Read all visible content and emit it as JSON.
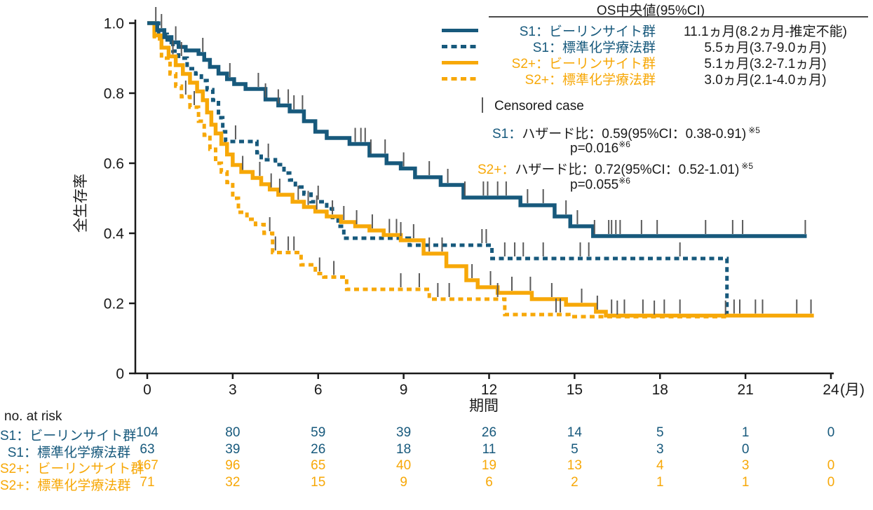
{
  "colors": {
    "s1": "#17597C",
    "s2": "#F7A808",
    "text": "#1a1a1a",
    "censor": "#5a5a5a",
    "axis": "#1a1a1a"
  },
  "chart_data": {
    "type": "line",
    "kind": "kaplan-meier-step",
    "xlabel": "期間",
    "ylabel": "全生存率",
    "xlim": [
      0,
      24
    ],
    "ylim": [
      0,
      1.0
    ],
    "grid": false,
    "legend_position": "top-right",
    "x_ticks": [
      {
        "v": 0,
        "label": "0"
      },
      {
        "v": 3,
        "label": "3"
      },
      {
        "v": 6,
        "label": "6"
      },
      {
        "v": 9,
        "label": "9"
      },
      {
        "v": 12,
        "label": "12"
      },
      {
        "v": 15,
        "label": "15"
      },
      {
        "v": 18,
        "label": "18"
      },
      {
        "v": 21,
        "label": "21"
      },
      {
        "v": 24,
        "label": "24",
        "suffix": "(月)"
      }
    ],
    "y_ticks": [
      {
        "v": 1.0,
        "label": "1.0"
      },
      {
        "v": 0.8,
        "label": "0.8"
      },
      {
        "v": 0.6,
        "label": "0.6"
      },
      {
        "v": 0.4,
        "label": "0.4"
      },
      {
        "v": 0.2,
        "label": "0.2"
      },
      {
        "v": 0,
        "label": "0"
      }
    ],
    "series": [
      {
        "id": "s1-chemo",
        "name": "S1：標準化学療法群",
        "color": "#17597C",
        "dash": "dashed",
        "median": "5.5ヵ月(3.7-9.0ヵ月)",
        "steps": [
          [
            0,
            1.0
          ],
          [
            0.4,
            0.968
          ],
          [
            0.7,
            0.952
          ],
          [
            0.9,
            0.92
          ],
          [
            1.1,
            0.9
          ],
          [
            1.4,
            0.87
          ],
          [
            1.7,
            0.855
          ],
          [
            1.9,
            0.836
          ],
          [
            2.1,
            0.81
          ],
          [
            2.3,
            0.78
          ],
          [
            2.5,
            0.73
          ],
          [
            2.65,
            0.69
          ],
          [
            2.75,
            0.662
          ],
          [
            3.85,
            0.63
          ],
          [
            4.0,
            0.61
          ],
          [
            4.5,
            0.596
          ],
          [
            4.8,
            0.572
          ],
          [
            5.0,
            0.552
          ],
          [
            5.2,
            0.532
          ],
          [
            5.5,
            0.512
          ],
          [
            5.75,
            0.49
          ],
          [
            6.3,
            0.47
          ],
          [
            6.5,
            0.445
          ],
          [
            6.7,
            0.42
          ],
          [
            6.9,
            0.386
          ],
          [
            9.2,
            0.366
          ],
          [
            12.1,
            0.328
          ],
          [
            20.35,
            0.165
          ]
        ],
        "end": 20.8,
        "censors": [
          1.2,
          3.1,
          4.25,
          6.0,
          8.9,
          11.75,
          11.9,
          12.55,
          12.9,
          13.2,
          13.9,
          15.2,
          15.5,
          18.7,
          20.6
        ]
      },
      {
        "id": "s2-chemo",
        "name": "S2+：標準化学療法群",
        "color": "#F7A808",
        "dash": "dashed",
        "median": "3.0ヵ月(2.1-4.0ヵ月)",
        "steps": [
          [
            0,
            1.0
          ],
          [
            0.25,
            0.955
          ],
          [
            0.5,
            0.9
          ],
          [
            0.8,
            0.855
          ],
          [
            1.0,
            0.82
          ],
          [
            1.2,
            0.79
          ],
          [
            1.5,
            0.76
          ],
          [
            1.8,
            0.72
          ],
          [
            2.0,
            0.68
          ],
          [
            2.2,
            0.64
          ],
          [
            2.4,
            0.6
          ],
          [
            2.6,
            0.575
          ],
          [
            2.8,
            0.545
          ],
          [
            3.0,
            0.5
          ],
          [
            3.2,
            0.46
          ],
          [
            3.5,
            0.44
          ],
          [
            3.8,
            0.425
          ],
          [
            4.1,
            0.4
          ],
          [
            4.4,
            0.345
          ],
          [
            5.4,
            0.31
          ],
          [
            5.9,
            0.285
          ],
          [
            6.2,
            0.275
          ],
          [
            7.0,
            0.24
          ],
          [
            9.9,
            0.212
          ],
          [
            12.55,
            0.168
          ],
          [
            14.8,
            0.162
          ]
        ],
        "end": 20.4,
        "censors": [
          1.35,
          1.65,
          4.3,
          4.5,
          4.95,
          5.15,
          6.05,
          6.55,
          8.9,
          9.55,
          10.2,
          10.6,
          12.3,
          14.35,
          14.5,
          16.5,
          17.8,
          20.3
        ]
      },
      {
        "id": "s2-blincyto",
        "name": "S2+：ビーリンサイト群",
        "color": "#F7A808",
        "dash": "solid",
        "median": "5.1ヵ月(3.2-7.1ヵ月)",
        "steps": [
          [
            0,
            1.0
          ],
          [
            0.25,
            0.965
          ],
          [
            0.5,
            0.93
          ],
          [
            0.75,
            0.905
          ],
          [
            1.0,
            0.88
          ],
          [
            1.25,
            0.855
          ],
          [
            1.5,
            0.83
          ],
          [
            1.75,
            0.805
          ],
          [
            1.95,
            0.78
          ],
          [
            2.1,
            0.745
          ],
          [
            2.25,
            0.71
          ],
          [
            2.4,
            0.685
          ],
          [
            2.6,
            0.655
          ],
          [
            2.8,
            0.625
          ],
          [
            3.0,
            0.595
          ],
          [
            3.3,
            0.575
          ],
          [
            3.7,
            0.558
          ],
          [
            4.0,
            0.54
          ],
          [
            4.3,
            0.525
          ],
          [
            4.6,
            0.51
          ],
          [
            5.1,
            0.49
          ],
          [
            5.5,
            0.475
          ],
          [
            5.9,
            0.462
          ],
          [
            6.3,
            0.448
          ],
          [
            6.8,
            0.432
          ],
          [
            7.3,
            0.42
          ],
          [
            7.8,
            0.408
          ],
          [
            8.3,
            0.395
          ],
          [
            8.9,
            0.38
          ],
          [
            9.7,
            0.342
          ],
          [
            10.5,
            0.306
          ],
          [
            11.2,
            0.266
          ],
          [
            11.6,
            0.246
          ],
          [
            12.3,
            0.23
          ],
          [
            13.5,
            0.212
          ],
          [
            14.7,
            0.196
          ],
          [
            15.75,
            0.176
          ],
          [
            16.1,
            0.165
          ]
        ],
        "end": 23.4,
        "censors": [
          0.9,
          3.35,
          3.95,
          4.35,
          4.65,
          5.3,
          5.65,
          5.95,
          6.5,
          6.9,
          7.35,
          7.9,
          8.5,
          8.75,
          9.35,
          9.9,
          10.35,
          11.4,
          12.05,
          12.8,
          13.45,
          14.2,
          15.25,
          15.8,
          16.3,
          16.75,
          17.4,
          18.15,
          18.7,
          20.8,
          21.35,
          21.6,
          22.8,
          23.3
        ]
      },
      {
        "id": "s1-blincyto",
        "name": "S1：ビーリンサイト群",
        "color": "#17597C",
        "dash": "solid",
        "median": "11.1ヵ月(8.2ヵ月-推定不能)",
        "steps": [
          [
            0,
            1.0
          ],
          [
            0.35,
            0.98
          ],
          [
            0.6,
            0.96
          ],
          [
            0.85,
            0.945
          ],
          [
            1.1,
            0.932
          ],
          [
            1.35,
            0.922
          ],
          [
            1.8,
            0.912
          ],
          [
            2.0,
            0.895
          ],
          [
            2.2,
            0.875
          ],
          [
            2.5,
            0.856
          ],
          [
            2.8,
            0.84
          ],
          [
            3.05,
            0.826
          ],
          [
            3.45,
            0.812
          ],
          [
            4.15,
            0.782
          ],
          [
            4.6,
            0.765
          ],
          [
            5.0,
            0.748
          ],
          [
            5.5,
            0.72
          ],
          [
            5.9,
            0.69
          ],
          [
            6.3,
            0.672
          ],
          [
            7.1,
            0.655
          ],
          [
            7.8,
            0.622
          ],
          [
            8.4,
            0.6
          ],
          [
            8.9,
            0.585
          ],
          [
            9.4,
            0.56
          ],
          [
            10.3,
            0.538
          ],
          [
            11.1,
            0.502
          ],
          [
            13.1,
            0.48
          ],
          [
            14.3,
            0.448
          ],
          [
            14.85,
            0.42
          ],
          [
            15.65,
            0.392
          ]
        ],
        "end": 23.15,
        "censors": [
          0.3,
          0.5,
          1.0,
          1.95,
          2.9,
          3.9,
          4.15,
          4.6,
          4.95,
          5.15,
          5.45,
          7.3,
          7.5,
          7.65,
          7.85,
          8.35,
          9.0,
          9.9,
          10.55,
          11.15,
          11.8,
          11.95,
          12.3,
          12.6,
          13.35,
          13.9,
          14.7,
          15.1,
          15.7,
          16.2,
          16.3,
          16.45,
          16.6,
          17.35,
          17.9,
          19.6,
          20.55,
          20.9,
          23.1
        ]
      }
    ]
  },
  "legend": {
    "header": "OS中央値(95%CI)",
    "rows": [
      {
        "label": "S1：ビーリンサイト群",
        "value": "11.1ヵ月(8.2ヵ月-推定不能)",
        "color": "#17597C",
        "dash": "solid"
      },
      {
        "label": "S1：標準化学療法群",
        "value": "5.5ヵ月(3.7-9.0ヵ月)",
        "color": "#17597C",
        "dash": "dashed"
      },
      {
        "label": "S2+：ビーリンサイト群",
        "value": "5.1ヵ月(3.2-7.1ヵ月)",
        "color": "#F7A808",
        "dash": "solid"
      },
      {
        "label": "S2+：標準化学療法群",
        "value": "3.0ヵ月(2.1-4.0ヵ月)",
        "color": "#F7A808",
        "dash": "dashed"
      }
    ],
    "censored_label": "Censored case"
  },
  "annotations": {
    "s1_prefix": "S1：",
    "s1_text": "ハザード比：0.59(95%CI：0.38-0.91)",
    "s1_sup": "※5",
    "s1_p": "p=0.016",
    "s1_p_sup": "※6",
    "s2_prefix": "S2+：",
    "s2_text": "ハザード比：0.72(95%CI：0.52-1.01)",
    "s2_sup": "※5",
    "s2_p": "p=0.055",
    "s2_p_sup": "※6"
  },
  "risk_table": {
    "title": "no. at risk",
    "columns": [
      0,
      3,
      6,
      9,
      12,
      15,
      18,
      21,
      24
    ],
    "rows": [
      {
        "label": "S1：ビーリンサイト群",
        "color": "#17597C",
        "values": [
          "104",
          "80",
          "59",
          "39",
          "26",
          "14",
          "5",
          "1",
          "0"
        ]
      },
      {
        "label": "S1：標準化学療法群",
        "color": "#17597C",
        "values": [
          "63",
          "39",
          "26",
          "18",
          "11",
          "5",
          "3",
          "0",
          ""
        ]
      },
      {
        "label": "S2+：ビーリンサイト群",
        "color": "#F7A808",
        "values": [
          "167",
          "96",
          "65",
          "40",
          "19",
          "13",
          "4",
          "3",
          "0"
        ]
      },
      {
        "label": "S2+：標準化学療法群",
        "color": "#F7A808",
        "values": [
          "71",
          "32",
          "15",
          "9",
          "6",
          "2",
          "1",
          "1",
          "0"
        ]
      }
    ]
  }
}
